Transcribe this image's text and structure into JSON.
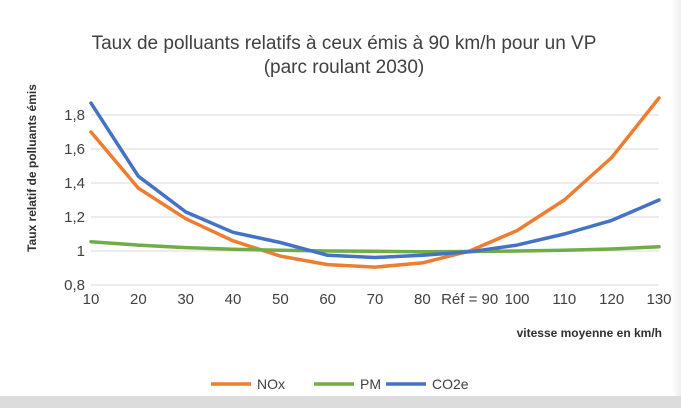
{
  "chart_data": {
    "type": "line",
    "title_line1": "Taux de polluants relatifs à ceux émis à 90 km/h pour un VP",
    "title_line2": "(parc roulant 2030)",
    "xlabel": "vitesse moyenne en km/h",
    "ylabel": "Taux relatif de polluants émis",
    "categories": [
      "10",
      "20",
      "30",
      "40",
      "50",
      "60",
      "70",
      "80",
      "Réf = 90",
      "100",
      "110",
      "120",
      "130"
    ],
    "ylim": [
      0.8,
      1.9
    ],
    "yticks": [
      "0,8",
      "1",
      "1,2",
      "1,4",
      "1,6",
      "1,8"
    ],
    "ytick_values": [
      0.8,
      1.0,
      1.2,
      1.4,
      1.6,
      1.8
    ],
    "grid": true,
    "legend_position": "bottom",
    "series": [
      {
        "name": "NOx",
        "color": "#ED7D31",
        "values": [
          1.7,
          1.37,
          1.19,
          1.06,
          0.97,
          0.92,
          0.905,
          0.93,
          1.0,
          1.12,
          1.3,
          1.55,
          1.9
        ]
      },
      {
        "name": "PM",
        "color": "#70AD47",
        "values": [
          1.055,
          1.035,
          1.02,
          1.01,
          1.005,
          1.0,
          0.998,
          0.996,
          0.997,
          1.0,
          1.005,
          1.012,
          1.025
        ]
      },
      {
        "name": "CO2e",
        "color": "#4472C4",
        "values": [
          1.87,
          1.44,
          1.23,
          1.11,
          1.05,
          0.975,
          0.962,
          0.975,
          0.995,
          1.035,
          1.1,
          1.18,
          1.3
        ]
      }
    ]
  }
}
